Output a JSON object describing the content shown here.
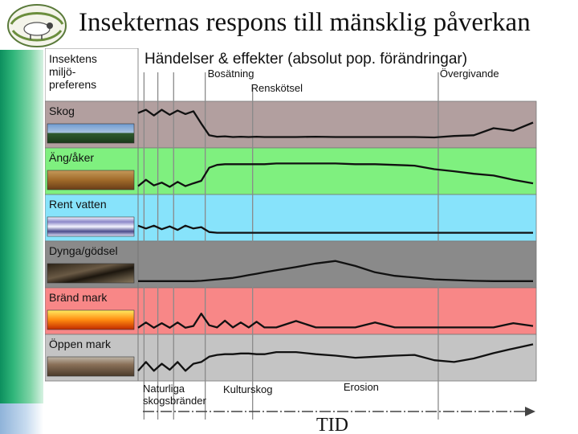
{
  "slide": {
    "title": "Insekternas respons till mänsklig påverkan"
  },
  "colors": {
    "skog": "#b29f9f",
    "ang": "#7ff07f",
    "vatten": "#87e3fb",
    "dynga": "#8a8a8a",
    "brand": "#f88787",
    "oppen": "#c4c4c4",
    "line": "#111111"
  },
  "chart_data": {
    "type": "line",
    "title": "Händelser & effekter (absolut pop. förändringar)",
    "row_header": "Insektens miljö- preferens",
    "row_header_lines": [
      "Insektens",
      "miljö-",
      "preferens"
    ],
    "xlabel": "TID",
    "events_top": [
      "Bosätning",
      "Renskötsel",
      "Övergivande"
    ],
    "events_bottom": [
      "Naturliga",
      "skogsbränder",
      "Kulturskog",
      "Erosion"
    ],
    "x": [
      0,
      2,
      4,
      6,
      8,
      10,
      12,
      14,
      16,
      18,
      20,
      22,
      24,
      26,
      28,
      30,
      32,
      35,
      40,
      45,
      50,
      55,
      60,
      65,
      70,
      75,
      80,
      85,
      90,
      95,
      100
    ],
    "series": [
      {
        "name": "Skog",
        "values": [
          0.85,
          0.94,
          0.78,
          0.94,
          0.8,
          0.92,
          0.82,
          0.9,
          0.55,
          0.22,
          0.18,
          0.19,
          0.17,
          0.18,
          0.17,
          0.18,
          0.17,
          0.17,
          0.17,
          0.18,
          0.17,
          0.17,
          0.17,
          0.17,
          0.17,
          0.16,
          0.2,
          0.22,
          0.42,
          0.35,
          0.58
        ]
      },
      {
        "name": "Äng/åker",
        "values": [
          0.1,
          0.28,
          0.12,
          0.2,
          0.08,
          0.22,
          0.1,
          0.18,
          0.25,
          0.62,
          0.7,
          0.72,
          0.72,
          0.72,
          0.72,
          0.72,
          0.72,
          0.74,
          0.74,
          0.74,
          0.74,
          0.72,
          0.72,
          0.7,
          0.68,
          0.58,
          0.52,
          0.45,
          0.4,
          0.28,
          0.18
        ]
      },
      {
        "name": "Rent vatten",
        "values": [
          0.3,
          0.22,
          0.3,
          0.2,
          0.28,
          0.18,
          0.3,
          0.22,
          0.26,
          0.12,
          0.1,
          0.1,
          0.1,
          0.1,
          0.1,
          0.1,
          0.1,
          0.1,
          0.1,
          0.1,
          0.1,
          0.1,
          0.1,
          0.1,
          0.1,
          0.1,
          0.1,
          0.1,
          0.1,
          0.1,
          0.1
        ]
      },
      {
        "name": "Dynga/gödsel",
        "values": [
          0.05,
          0.05,
          0.05,
          0.05,
          0.05,
          0.05,
          0.05,
          0.05,
          0.06,
          0.08,
          0.1,
          0.12,
          0.14,
          0.18,
          0.22,
          0.26,
          0.3,
          0.36,
          0.45,
          0.55,
          0.62,
          0.48,
          0.3,
          0.2,
          0.15,
          0.1,
          0.08,
          0.06,
          0.05,
          0.05,
          0.05
        ]
      },
      {
        "name": "Bränd mark",
        "values": [
          0.05,
          0.2,
          0.05,
          0.18,
          0.05,
          0.2,
          0.05,
          0.1,
          0.45,
          0.12,
          0.06,
          0.25,
          0.06,
          0.2,
          0.06,
          0.22,
          0.06,
          0.06,
          0.24,
          0.06,
          0.06,
          0.06,
          0.2,
          0.06,
          0.06,
          0.06,
          0.06,
          0.06,
          0.06,
          0.18,
          0.1
        ]
      },
      {
        "name": "Öppen mark",
        "values": [
          0.15,
          0.4,
          0.15,
          0.35,
          0.18,
          0.4,
          0.15,
          0.35,
          0.4,
          0.55,
          0.6,
          0.62,
          0.62,
          0.64,
          0.64,
          0.62,
          0.62,
          0.68,
          0.68,
          0.62,
          0.58,
          0.52,
          0.55,
          0.58,
          0.6,
          0.45,
          0.4,
          0.5,
          0.65,
          0.78,
          0.9
        ]
      }
    ],
    "event_positions": {
      "Naturliga_1": 1.5,
      "Naturliga_2": 5,
      "Naturliga_3": 9,
      "Bosätning": 17,
      "Renskötsel": 29,
      "Övergivande": 76
    },
    "row_color_keys": [
      "skog",
      "ang",
      "vatten",
      "dynga",
      "brand",
      "oppen"
    ],
    "grid": false
  }
}
